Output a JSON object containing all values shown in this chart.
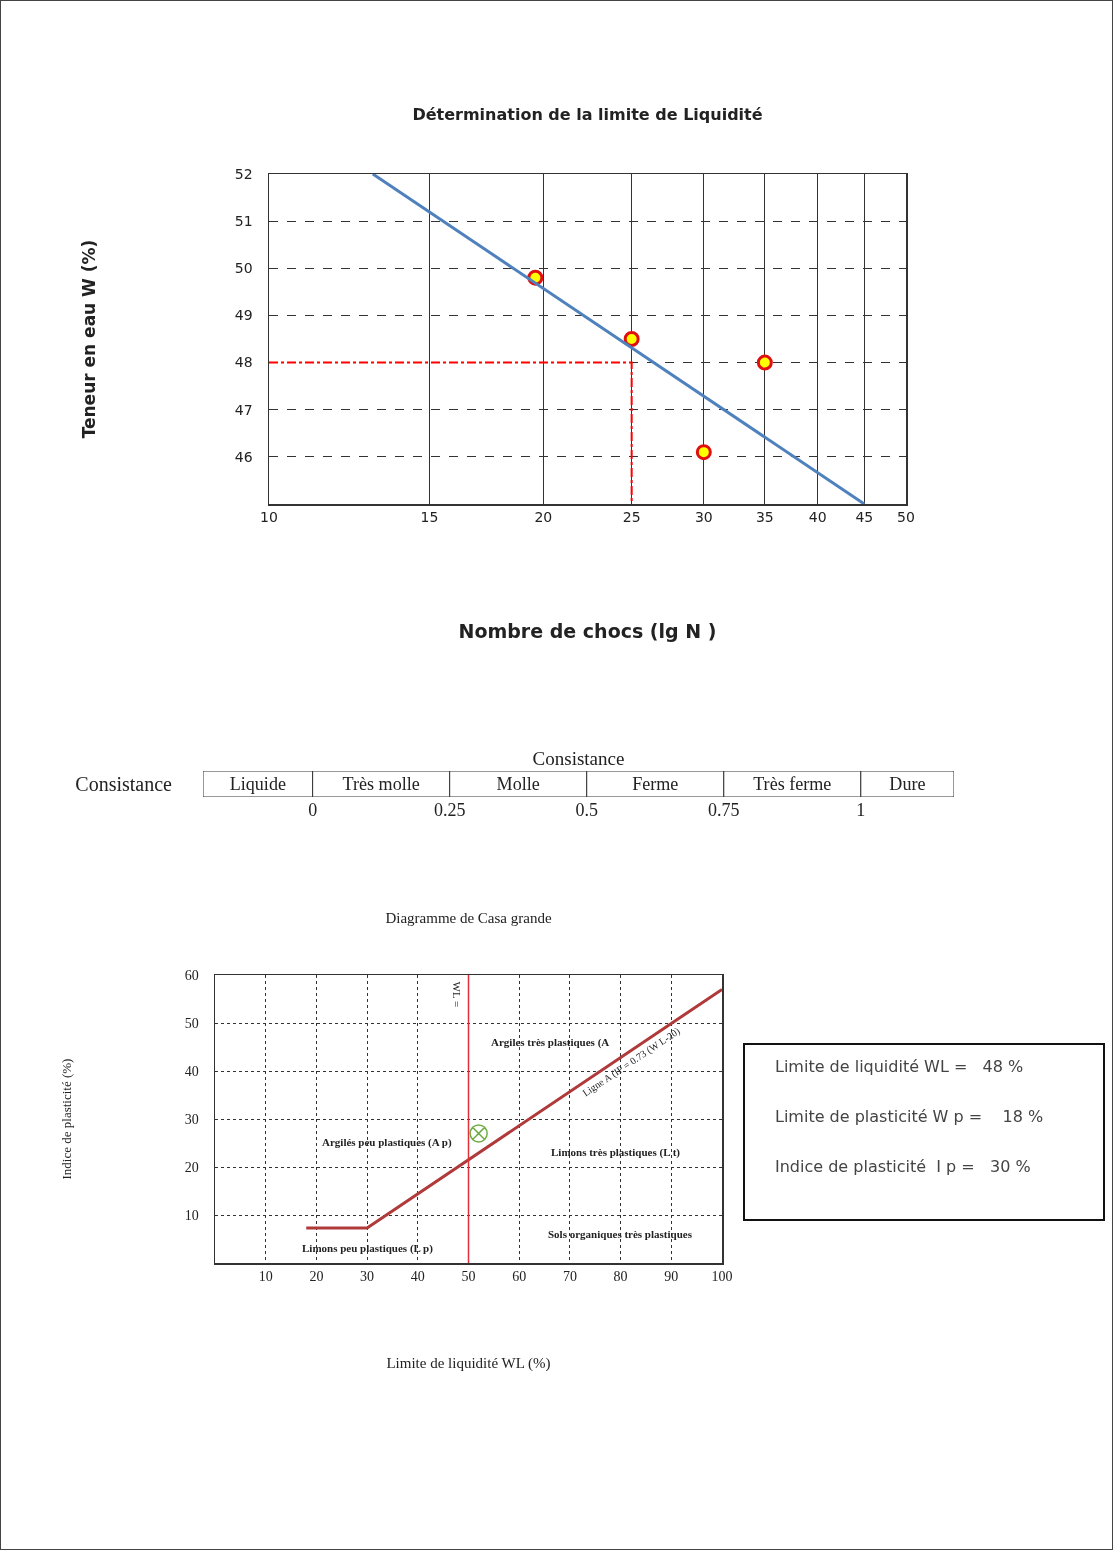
{
  "chart_data": [
    {
      "type": "scatter",
      "title": "Détermination de la limite de Liquidité",
      "xlabel": "Nombre de chocs (lg N )",
      "ylabel": "Teneur en eau W (%)",
      "log": "x",
      "xlim": [
        10,
        50
      ],
      "xticks": [
        10,
        15,
        20,
        25,
        30,
        35,
        40,
        45,
        50
      ],
      "ylim": [
        45,
        52
      ],
      "yticks": [
        46,
        47,
        48,
        49,
        50,
        51,
        52
      ],
      "grid": true,
      "series": [
        {
          "type": "scatter",
          "marker": "circle",
          "color": "#ffff00",
          "x": [
            19.6,
            25,
            30,
            35
          ],
          "values": [
            49.8,
            48.5,
            46.1,
            48
          ]
        },
        {
          "type": "line",
          "color": "#4f81bd",
          "x": [
            13,
            45
          ],
          "values": [
            52,
            45
          ]
        },
        {
          "type": "line",
          "color": "#ff0000",
          "line_style": "dashed",
          "x": [
            10,
            25,
            25
          ],
          "values": [
            48,
            48,
            45
          ]
        }
      ]
    },
    {
      "type": "bar",
      "orientation": "horizontal",
      "title": "Consistance",
      "categories": [
        "Consistance"
      ],
      "xlim": [
        -0.2,
        1.17
      ],
      "xticks": [
        0,
        0.25,
        0.5,
        0.75,
        1
      ],
      "series": [
        {
          "name": "Liquide",
          "color": "#ffffff",
          "base": [
            -0.2
          ],
          "values": [
            0.2
          ]
        },
        {
          "name": "Très molle",
          "color": "#ffffff",
          "base": [
            0
          ],
          "values": [
            0.25
          ]
        },
        {
          "name": "Molle",
          "color": "#ffffff",
          "base": [
            0.25
          ],
          "values": [
            0.25
          ]
        },
        {
          "name": "Ferme",
          "color": "#ffffff",
          "base": [
            0.5
          ],
          "values": [
            0.25
          ]
        },
        {
          "name": "Très ferme",
          "color": "#ffffff",
          "base": [
            0.75
          ],
          "values": [
            0.25
          ]
        },
        {
          "name": "Dure",
          "color": "#ffffff",
          "base": [
            1
          ],
          "values": [
            0.17
          ]
        }
      ]
    },
    {
      "type": "line",
      "title": "Diagramme de Casa grande",
      "xlabel": "Limite de liquidité WL (%)",
      "ylabel": "Indice de plasticité (%)",
      "xlim": [
        0,
        100
      ],
      "xticks": [
        10,
        20,
        30,
        40,
        50,
        60,
        70,
        80,
        90,
        100
      ],
      "ylim": [
        0,
        60
      ],
      "yticks": [
        10,
        20,
        30,
        40,
        50,
        60
      ],
      "grid": true,
      "series": [
        {
          "type": "line",
          "name": "Ligne A (IP = 0.73 (W L-20)",
          "color": "#b03a3a",
          "x": [
            18,
            30,
            100
          ],
          "values": [
            7.3,
            7.3,
            57
          ]
        },
        {
          "type": "scatter",
          "marker": "cross",
          "color": "#70ad47",
          "x": [
            52
          ],
          "values": [
            27
          ]
        }
      ],
      "ref_lines": [
        {
          "axis": "x",
          "value": 50,
          "label": "WL =",
          "color": "#e0303a"
        }
      ],
      "annotations": [
        "Argiles très plastiques (A",
        "Argilés peu plastiques (A p)",
        "Limons très plastiques (L t)",
        "Limons peu plastiques (L p)",
        "Sols organiques très plastiques"
      ]
    },
    {
      "type": "other",
      "annotations": [
        "Limite de liquidité WL =   48 %",
        "Limite de plasticité W p =    18 %",
        "Indice de plasticité  I p =   30 %"
      ]
    }
  ]
}
